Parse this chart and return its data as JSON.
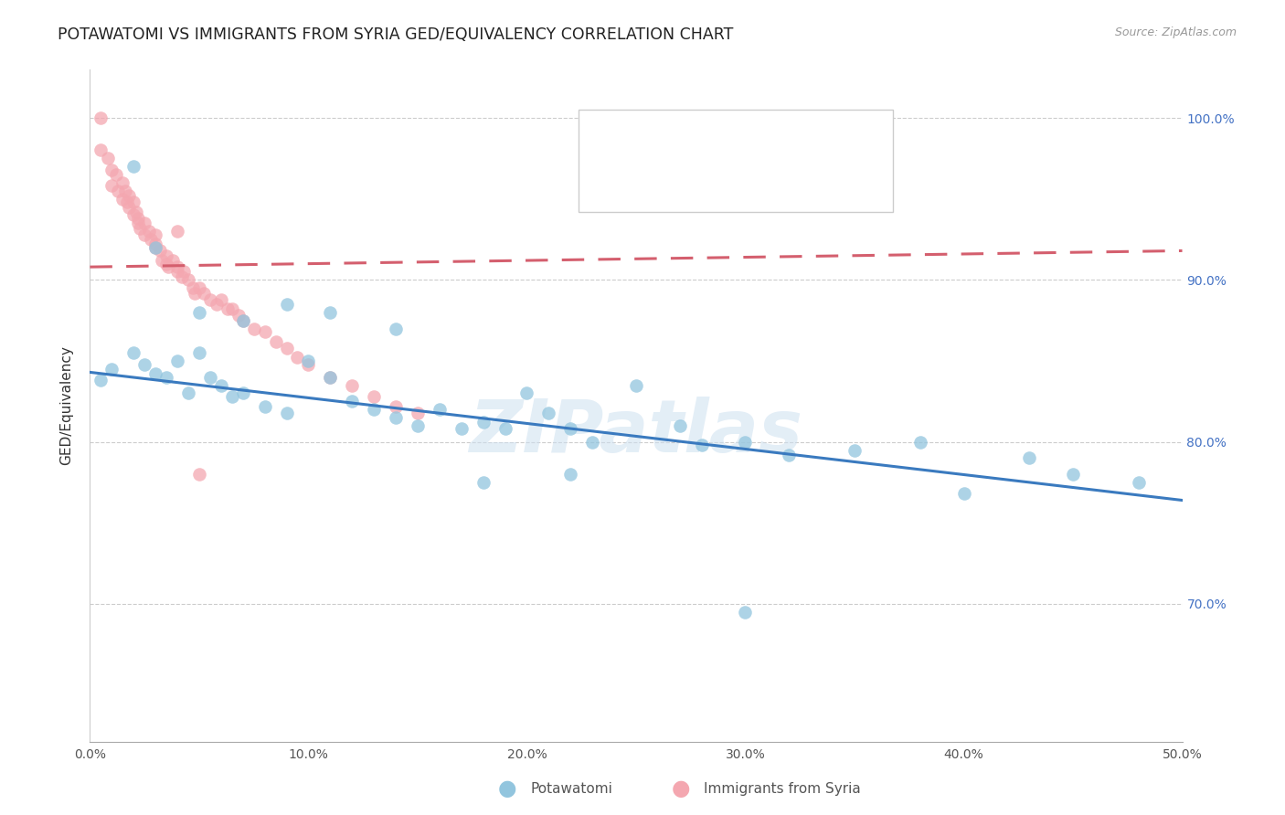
{
  "title": "POTAWATOMI VS IMMIGRANTS FROM SYRIA GED/EQUIVALENCY CORRELATION CHART",
  "source": "Source: ZipAtlas.com",
  "ylabel": "GED/Equivalency",
  "xlim": [
    0.0,
    0.5
  ],
  "ylim": [
    0.615,
    1.03
  ],
  "xticks": [
    0.0,
    0.1,
    0.2,
    0.3,
    0.4,
    0.5
  ],
  "xticklabels": [
    "0.0%",
    "10.0%",
    "20.0%",
    "30.0%",
    "40.0%",
    "50.0%"
  ],
  "yticks": [
    0.7,
    0.8,
    0.9,
    1.0
  ],
  "yticklabels_right": [
    "70.0%",
    "80.0%",
    "90.0%",
    "100.0%"
  ],
  "blue_color": "#92c5de",
  "pink_color": "#f4a7b0",
  "blue_line_color": "#3a7abf",
  "pink_line_color": "#d45f6e",
  "watermark": "ZIPatlas",
  "blue_scatter_x": [
    0.005,
    0.01,
    0.02,
    0.025,
    0.03,
    0.035,
    0.04,
    0.045,
    0.05,
    0.055,
    0.06,
    0.065,
    0.07,
    0.08,
    0.09,
    0.1,
    0.11,
    0.12,
    0.13,
    0.14,
    0.15,
    0.16,
    0.17,
    0.18,
    0.19,
    0.2,
    0.21,
    0.22,
    0.23,
    0.25,
    0.27,
    0.28,
    0.3,
    0.32,
    0.35,
    0.38,
    0.4,
    0.43,
    0.45,
    0.48,
    0.02,
    0.03,
    0.05,
    0.07,
    0.09,
    0.11,
    0.14,
    0.18,
    0.22,
    0.3
  ],
  "blue_scatter_y": [
    0.838,
    0.845,
    0.855,
    0.848,
    0.842,
    0.84,
    0.85,
    0.83,
    0.855,
    0.84,
    0.835,
    0.828,
    0.83,
    0.822,
    0.818,
    0.85,
    0.84,
    0.825,
    0.82,
    0.815,
    0.81,
    0.82,
    0.808,
    0.812,
    0.808,
    0.83,
    0.818,
    0.808,
    0.8,
    0.835,
    0.81,
    0.798,
    0.8,
    0.792,
    0.795,
    0.8,
    0.768,
    0.79,
    0.78,
    0.775,
    0.97,
    0.92,
    0.88,
    0.875,
    0.885,
    0.88,
    0.87,
    0.775,
    0.78,
    0.695
  ],
  "pink_scatter_x": [
    0.005,
    0.005,
    0.008,
    0.01,
    0.01,
    0.012,
    0.013,
    0.015,
    0.015,
    0.016,
    0.017,
    0.018,
    0.018,
    0.02,
    0.02,
    0.021,
    0.022,
    0.022,
    0.023,
    0.025,
    0.025,
    0.027,
    0.028,
    0.03,
    0.03,
    0.03,
    0.032,
    0.033,
    0.035,
    0.035,
    0.036,
    0.038,
    0.04,
    0.04,
    0.042,
    0.043,
    0.045,
    0.047,
    0.048,
    0.05,
    0.052,
    0.055,
    0.058,
    0.06,
    0.063,
    0.065,
    0.068,
    0.07,
    0.075,
    0.08,
    0.085,
    0.09,
    0.095,
    0.1,
    0.11,
    0.12,
    0.13,
    0.14,
    0.15,
    0.04,
    0.05
  ],
  "pink_scatter_y": [
    1.0,
    0.98,
    0.975,
    0.968,
    0.958,
    0.965,
    0.955,
    0.96,
    0.95,
    0.955,
    0.948,
    0.952,
    0.945,
    0.948,
    0.94,
    0.942,
    0.935,
    0.938,
    0.932,
    0.935,
    0.928,
    0.93,
    0.925,
    0.928,
    0.922,
    0.92,
    0.918,
    0.912,
    0.915,
    0.91,
    0.908,
    0.912,
    0.908,
    0.905,
    0.902,
    0.905,
    0.9,
    0.895,
    0.892,
    0.895,
    0.892,
    0.888,
    0.885,
    0.888,
    0.882,
    0.882,
    0.878,
    0.875,
    0.87,
    0.868,
    0.862,
    0.858,
    0.852,
    0.848,
    0.84,
    0.835,
    0.828,
    0.822,
    0.818,
    0.93,
    0.78
  ],
  "blue_trend_x": [
    0.0,
    0.5
  ],
  "blue_trend_y": [
    0.843,
    0.764
  ],
  "pink_trend_x": [
    0.0,
    0.5
  ],
  "pink_trend_y": [
    0.908,
    0.918
  ]
}
